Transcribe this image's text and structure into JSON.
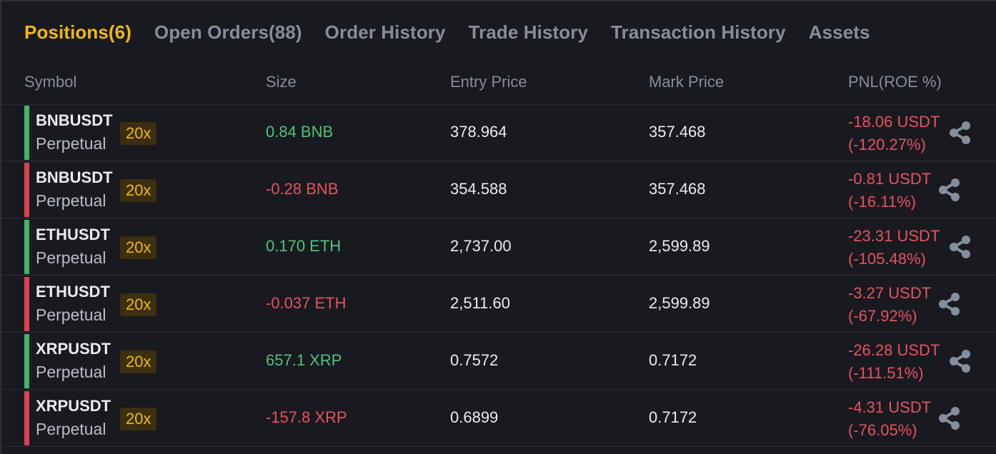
{
  "tabs": [
    {
      "label": "Positions(6)",
      "active": true
    },
    {
      "label": "Open Orders(88)",
      "active": false
    },
    {
      "label": "Order History",
      "active": false
    },
    {
      "label": "Trade History",
      "active": false
    },
    {
      "label": "Transaction History",
      "active": false
    },
    {
      "label": "Assets",
      "active": false
    }
  ],
  "columns": {
    "symbol": "Symbol",
    "size": "Size",
    "entry_price": "Entry Price",
    "mark_price": "Mark Price",
    "pnl": "PNL(ROE %)"
  },
  "rows": [
    {
      "symbol": "BNBUSDT",
      "contract": "Perpetual",
      "leverage": "20x",
      "side": "long",
      "size": "0.84 BNB",
      "entry": "378.964",
      "mark": "357.468",
      "pnl": "-18.06 USDT",
      "roe": "(-120.27%)",
      "share_icon": "share-icon"
    },
    {
      "symbol": "BNBUSDT",
      "contract": "Perpetual",
      "leverage": "20x",
      "side": "short",
      "size": "-0.28 BNB",
      "entry": "354.588",
      "mark": "357.468",
      "pnl": "-0.81 USDT",
      "roe": "(-16.11%)",
      "share_icon": "share-icon"
    },
    {
      "symbol": "ETHUSDT",
      "contract": "Perpetual",
      "leverage": "20x",
      "side": "long",
      "size": "0.170 ETH",
      "entry": "2,737.00",
      "mark": "2,599.89",
      "pnl": "-23.31 USDT",
      "roe": "(-105.48%)",
      "share_icon": "share-icon"
    },
    {
      "symbol": "ETHUSDT",
      "contract": "Perpetual",
      "leverage": "20x",
      "side": "short",
      "size": "-0.037 ETH",
      "entry": "2,511.60",
      "mark": "2,599.89",
      "pnl": "-3.27 USDT",
      "roe": "(-67.92%)",
      "share_icon": "share-icon"
    },
    {
      "symbol": "XRPUSDT",
      "contract": "Perpetual",
      "leverage": "20x",
      "side": "long",
      "size": "657.1 XRP",
      "entry": "0.7572",
      "mark": "0.7172",
      "pnl": "-26.28 USDT",
      "roe": "(-111.51%)",
      "share_icon": "share-icon"
    },
    {
      "symbol": "XRPUSDT",
      "contract": "Perpetual",
      "leverage": "20x",
      "side": "short",
      "size": "-157.8 XRP",
      "entry": "0.6899",
      "mark": "0.7172",
      "pnl": "-4.31 USDT",
      "roe": "(-76.05%)",
      "share_icon": "share-icon"
    }
  ],
  "colors": {
    "accent": "#f0b90b",
    "long": "#3fb568",
    "short": "#e0404f",
    "background": "#181a20"
  }
}
